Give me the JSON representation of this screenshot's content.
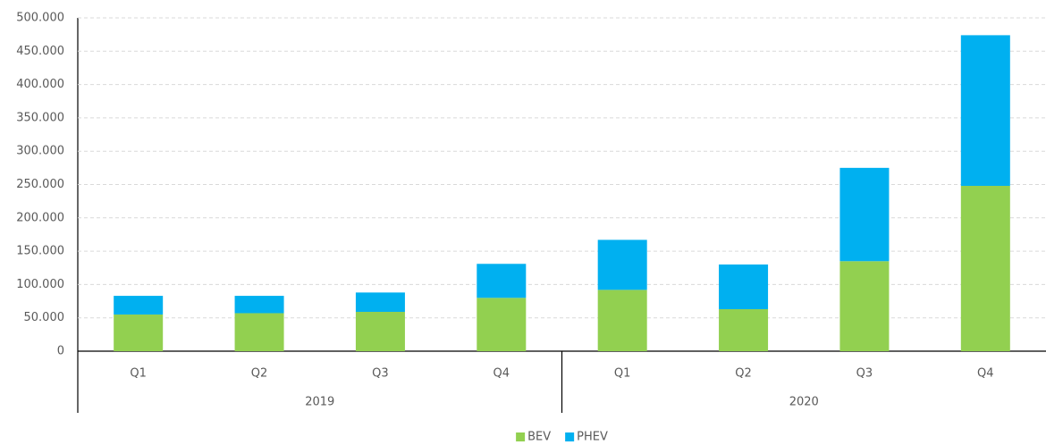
{
  "chart_data": {
    "type": "stacked-bar",
    "category_groups": [
      {
        "name": "2019",
        "categories": [
          "Q1",
          "Q2",
          "Q3",
          "Q4"
        ]
      },
      {
        "name": "2020",
        "categories": [
          "Q1",
          "Q2",
          "Q3",
          "Q4"
        ]
      }
    ],
    "series": [
      {
        "name": "BEV",
        "color": "#92d050",
        "values": [
          55000,
          57000,
          59000,
          80000,
          92000,
          63000,
          135000,
          248000
        ]
      },
      {
        "name": "PHEV",
        "color": "#00b0f0",
        "values": [
          28000,
          26000,
          29000,
          51000,
          75000,
          67000,
          140000,
          226000
        ]
      }
    ],
    "ylim": [
      0,
      500000
    ],
    "yticks": [
      0,
      {
        "value": 50000,
        "label": "50.000"
      },
      {
        "value": 100000,
        "label": "100.000"
      },
      {
        "value": 150000,
        "label": "150.000"
      },
      {
        "value": 200000,
        "label": "200.000"
      },
      {
        "value": 250000,
        "label": "250.000"
      },
      {
        "value": 300000,
        "label": "300.000"
      },
      {
        "value": 350000,
        "label": "350.000"
      },
      {
        "value": 400000,
        "label": "400.000"
      },
      {
        "value": 450000,
        "label": "450.000"
      },
      {
        "value": 500000,
        "label": "500.000"
      }
    ],
    "grid": true,
    "legend": "bottom"
  }
}
